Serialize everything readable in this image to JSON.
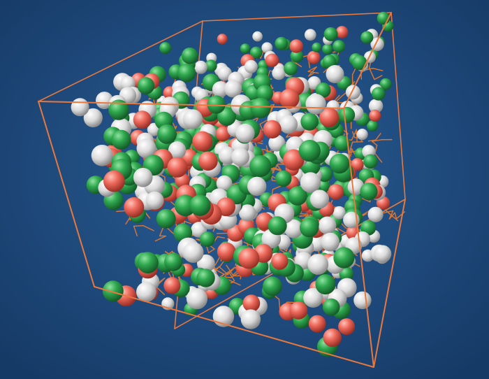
{
  "scene": {
    "subject": "molecular-dynamics-simulation-box",
    "background_color": "#1f4f86",
    "background_edge_color": "#163a66",
    "box_color": "#e8783e",
    "bond_color": "#e0772f",
    "atom_colors": {
      "carbon": "#2fa84f",
      "hydrogen": "#dcdcdc",
      "oxygen": "#ee6a5c"
    }
  }
}
